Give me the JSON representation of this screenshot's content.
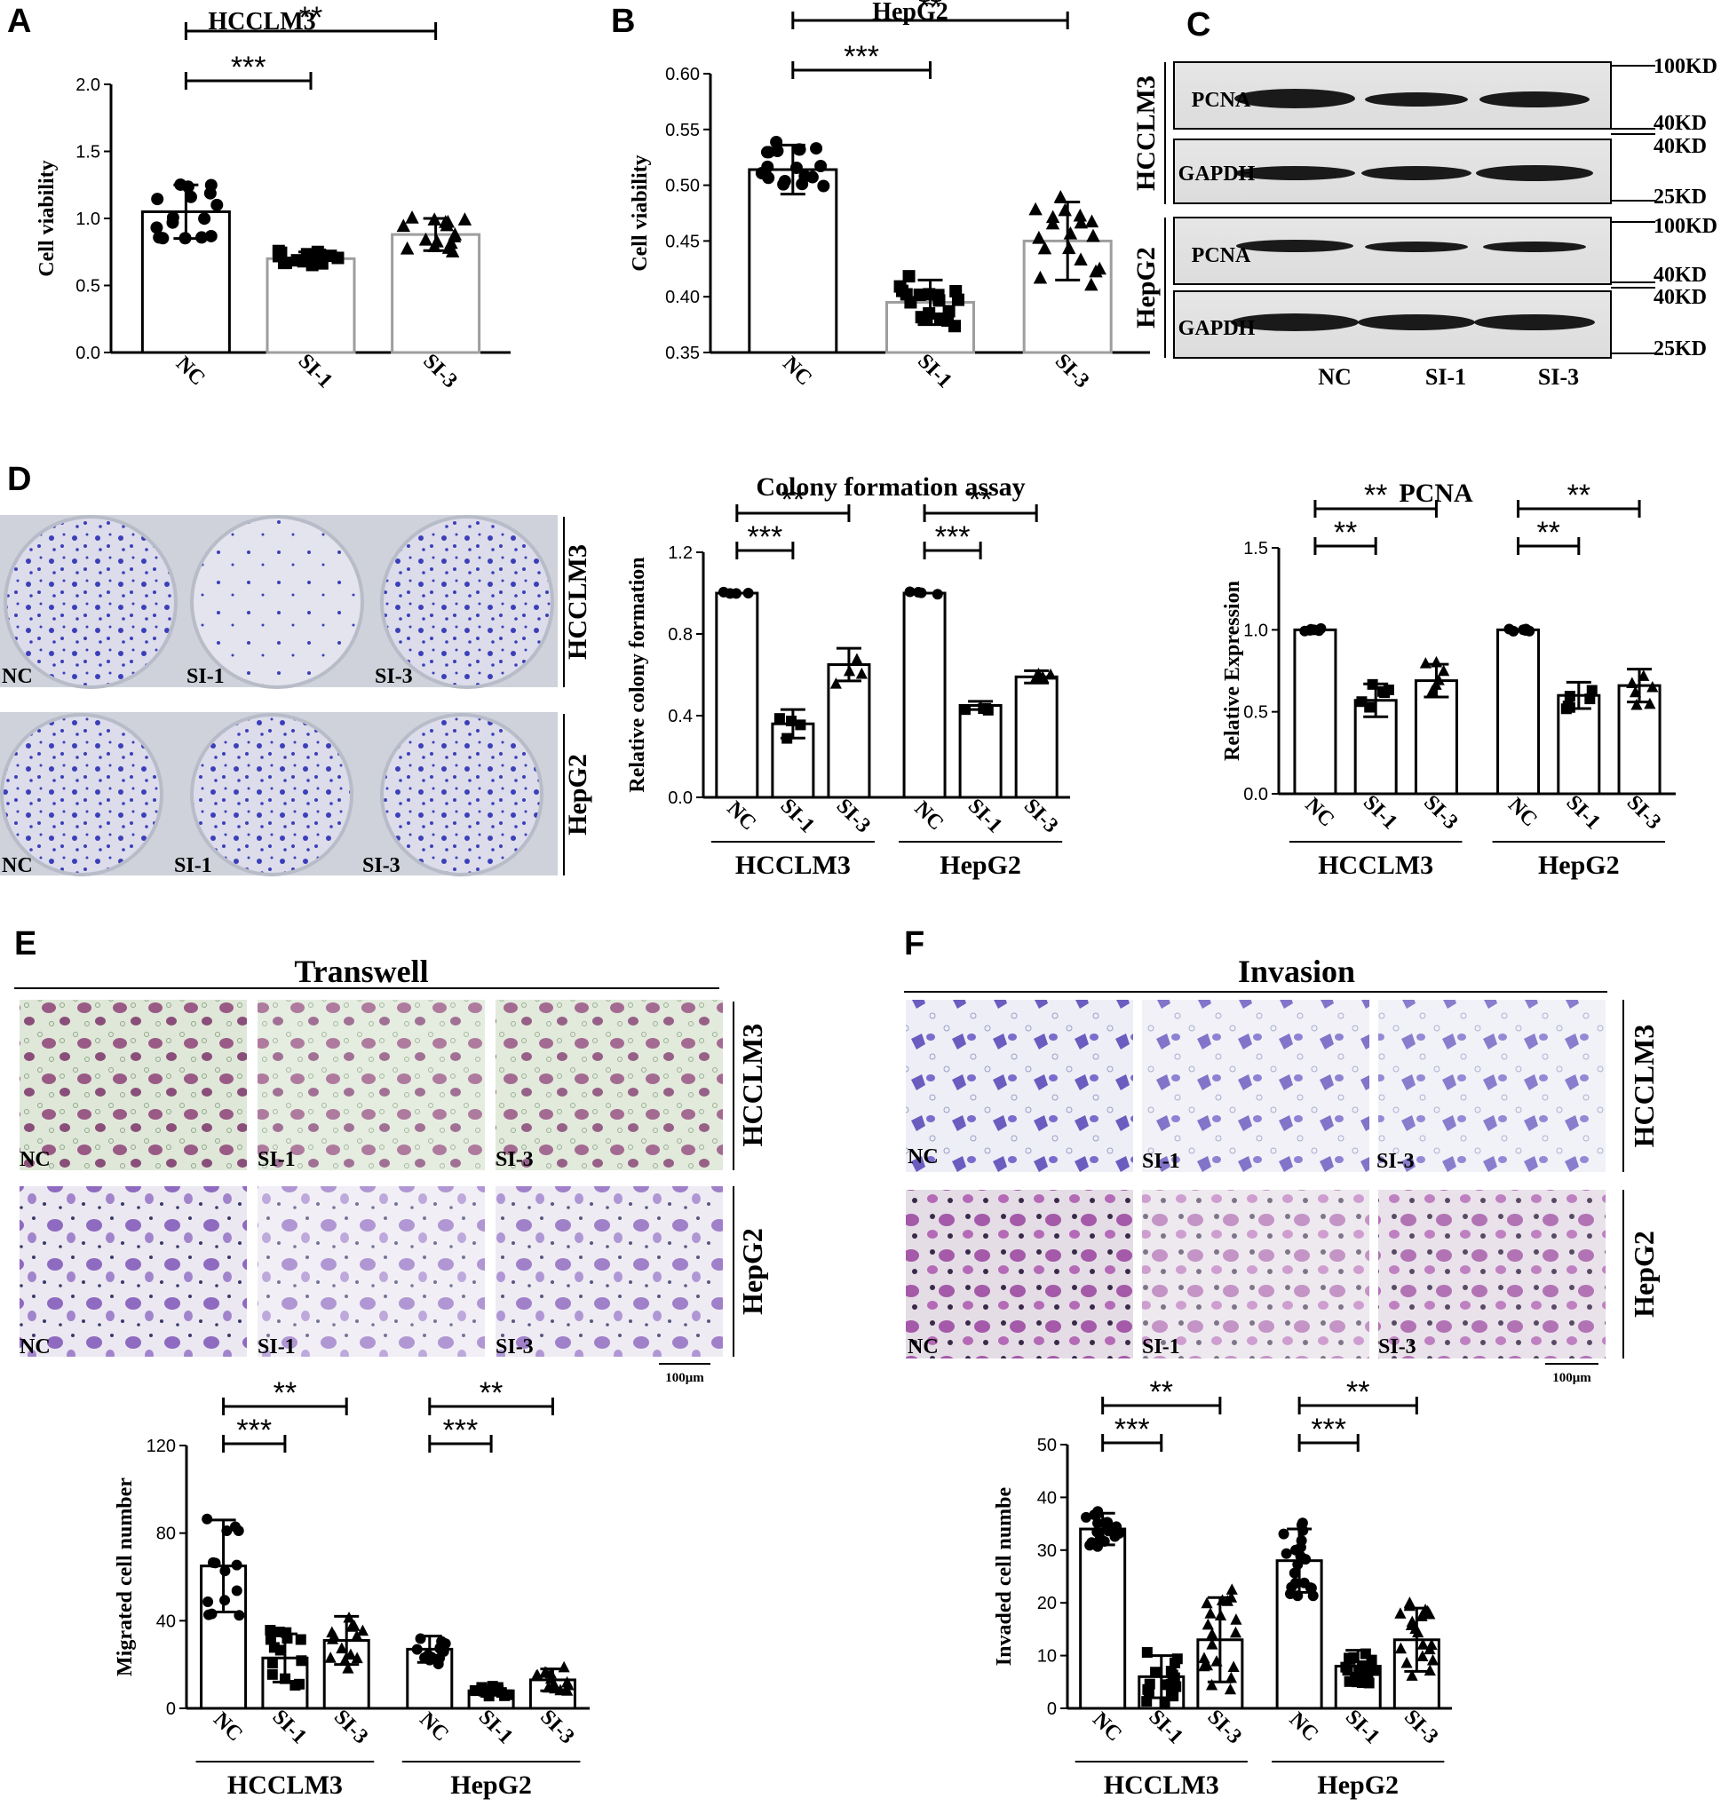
{
  "panels": {
    "A": {
      "letter": "A"
    },
    "B": {
      "letter": "B"
    },
    "C": {
      "letter": "C"
    },
    "D": {
      "letter": "D"
    },
    "E": {
      "letter": "E",
      "title": "Transwell",
      "scale": "100μm"
    },
    "F": {
      "letter": "F",
      "title": "Invasion",
      "scale": "100μm"
    }
  },
  "groups": {
    "g1": "HCCLM3",
    "g2": "HepG2"
  },
  "conditions": [
    "NC",
    "SI-1",
    "SI-3"
  ],
  "western": {
    "bands": [
      "PCNA",
      "GAPDH",
      "PCNA",
      "GAPDH"
    ],
    "markers": [
      "100KD",
      "40KD",
      "40KD",
      "25KD",
      "100KD",
      "40KD",
      "40KD",
      "25KD"
    ],
    "lane_labels": [
      "NC",
      "SI-1",
      "SI-3"
    ],
    "cell_lines": [
      "HCCLM3",
      "HepG2"
    ]
  },
  "plates": {
    "labels": [
      "NC",
      "SI-1",
      "SI-3",
      "NC",
      "SI-1",
      "SI-3"
    ],
    "cell_lines": [
      "HCCLM3",
      "HepG2"
    ]
  },
  "micrographs": {
    "E_labels": [
      "NC",
      "SI-1",
      "SI-3",
      "NC",
      "SI-1",
      "SI-3"
    ],
    "F_labels": [
      "NC",
      "SI-1",
      "SI-3",
      "NC",
      "SI-1",
      "SI-3"
    ]
  },
  "colors": {
    "axis": "#000000",
    "gray_bar": "#9e9e9e",
    "stain_purple": "#7b4fb5",
    "stain_dark": "#4a3a9a",
    "colony_blue": "#3b3fb8"
  },
  "chart_data": [
    {
      "id": "A",
      "type": "bar",
      "title": "HCCLM3",
      "ylabel": "Cell viability",
      "ylim": [
        0,
        2.0
      ],
      "yticks": [
        "0.0",
        "0.5",
        "1.0",
        "1.5",
        "2.0"
      ],
      "categories": [
        "NC",
        "SI-1",
        "SI-3"
      ],
      "values": [
        1.05,
        0.7,
        0.88
      ],
      "errors": [
        0.2,
        0.05,
        0.12
      ],
      "sig": [
        {
          "from": 0,
          "to": 1,
          "label": "***"
        },
        {
          "from": 0,
          "to": 2,
          "label": "**"
        }
      ]
    },
    {
      "id": "B",
      "type": "bar",
      "title": "HepG2",
      "ylabel": "Cell viability",
      "ylim": [
        0.35,
        0.6
      ],
      "yticks": [
        "0.35",
        "0.40",
        "0.45",
        "0.50",
        "0.55",
        "0.60"
      ],
      "categories": [
        "NC",
        "SI-1",
        "SI-3"
      ],
      "values": [
        0.514,
        0.395,
        0.45
      ],
      "errors": [
        0.022,
        0.02,
        0.035
      ],
      "sig": [
        {
          "from": 0,
          "to": 1,
          "label": "***"
        },
        {
          "from": 0,
          "to": 2,
          "label": "**"
        }
      ]
    },
    {
      "id": "D1",
      "type": "bar",
      "title": "Colony formation assay",
      "ylabel": "Relative colony formation",
      "ylim": [
        0,
        1.2
      ],
      "yticks": [
        "0.0",
        "0.4",
        "0.8",
        "1.2"
      ],
      "categories": [
        "NC",
        "SI-1",
        "SI-3",
        "NC",
        "SI-1",
        "SI-3"
      ],
      "values": [
        1.0,
        0.36,
        0.65,
        1.0,
        0.45,
        0.59
      ],
      "errors": [
        0,
        0.07,
        0.08,
        0,
        0.02,
        0.03
      ],
      "sig": [
        {
          "from": 0,
          "to": 1,
          "label": "***"
        },
        {
          "from": 0,
          "to": 2,
          "label": "**"
        },
        {
          "from": 3,
          "to": 4,
          "label": "***"
        },
        {
          "from": 3,
          "to": 5,
          "label": "**"
        }
      ]
    },
    {
      "id": "D2",
      "type": "bar",
      "title": "PCNA",
      "ylabel": "Relative Expression",
      "ylim": [
        0,
        1.5
      ],
      "yticks": [
        "0.0",
        "0.5",
        "1.0",
        "1.5"
      ],
      "categories": [
        "NC",
        "SI-1",
        "SI-3",
        "NC",
        "SI-1",
        "SI-3"
      ],
      "values": [
        1.0,
        0.57,
        0.69,
        1.0,
        0.6,
        0.66
      ],
      "errors": [
        0,
        0.1,
        0.1,
        0,
        0.08,
        0.1
      ],
      "sig": [
        {
          "from": 0,
          "to": 1,
          "label": "**"
        },
        {
          "from": 0,
          "to": 2,
          "label": "**"
        },
        {
          "from": 3,
          "to": 4,
          "label": "**"
        },
        {
          "from": 3,
          "to": 5,
          "label": "**"
        }
      ]
    },
    {
      "id": "E",
      "type": "bar",
      "title": "",
      "ylabel": "Migrated cell number",
      "ylim": [
        0,
        120
      ],
      "yticks": [
        "0",
        "40",
        "80",
        "120"
      ],
      "categories": [
        "NC",
        "SI-1",
        "SI-3",
        "NC",
        "SI-1",
        "SI-3"
      ],
      "values": [
        65,
        23,
        31,
        27,
        8,
        13
      ],
      "errors": [
        21,
        11,
        11,
        6,
        2,
        5
      ],
      "sig": [
        {
          "from": 0,
          "to": 1,
          "label": "***"
        },
        {
          "from": 0,
          "to": 2,
          "label": "**"
        },
        {
          "from": 3,
          "to": 4,
          "label": "***"
        },
        {
          "from": 3,
          "to": 5,
          "label": "**"
        }
      ]
    },
    {
      "id": "F",
      "type": "bar",
      "title": "",
      "ylabel": "Invaded cell numbe",
      "ylim": [
        0,
        50
      ],
      "yticks": [
        "0",
        "10",
        "20",
        "30",
        "40",
        "50"
      ],
      "categories": [
        "NC",
        "SI-1",
        "SI-3",
        "NC",
        "SI-1",
        "SI-3"
      ],
      "values": [
        34,
        6,
        13,
        28,
        8,
        13
      ],
      "errors": [
        3,
        4,
        8,
        6,
        3,
        6
      ],
      "sig": [
        {
          "from": 0,
          "to": 1,
          "label": "***"
        },
        {
          "from": 0,
          "to": 2,
          "label": "**"
        },
        {
          "from": 3,
          "to": 4,
          "label": "***"
        },
        {
          "from": 3,
          "to": 5,
          "label": "**"
        }
      ]
    }
  ]
}
